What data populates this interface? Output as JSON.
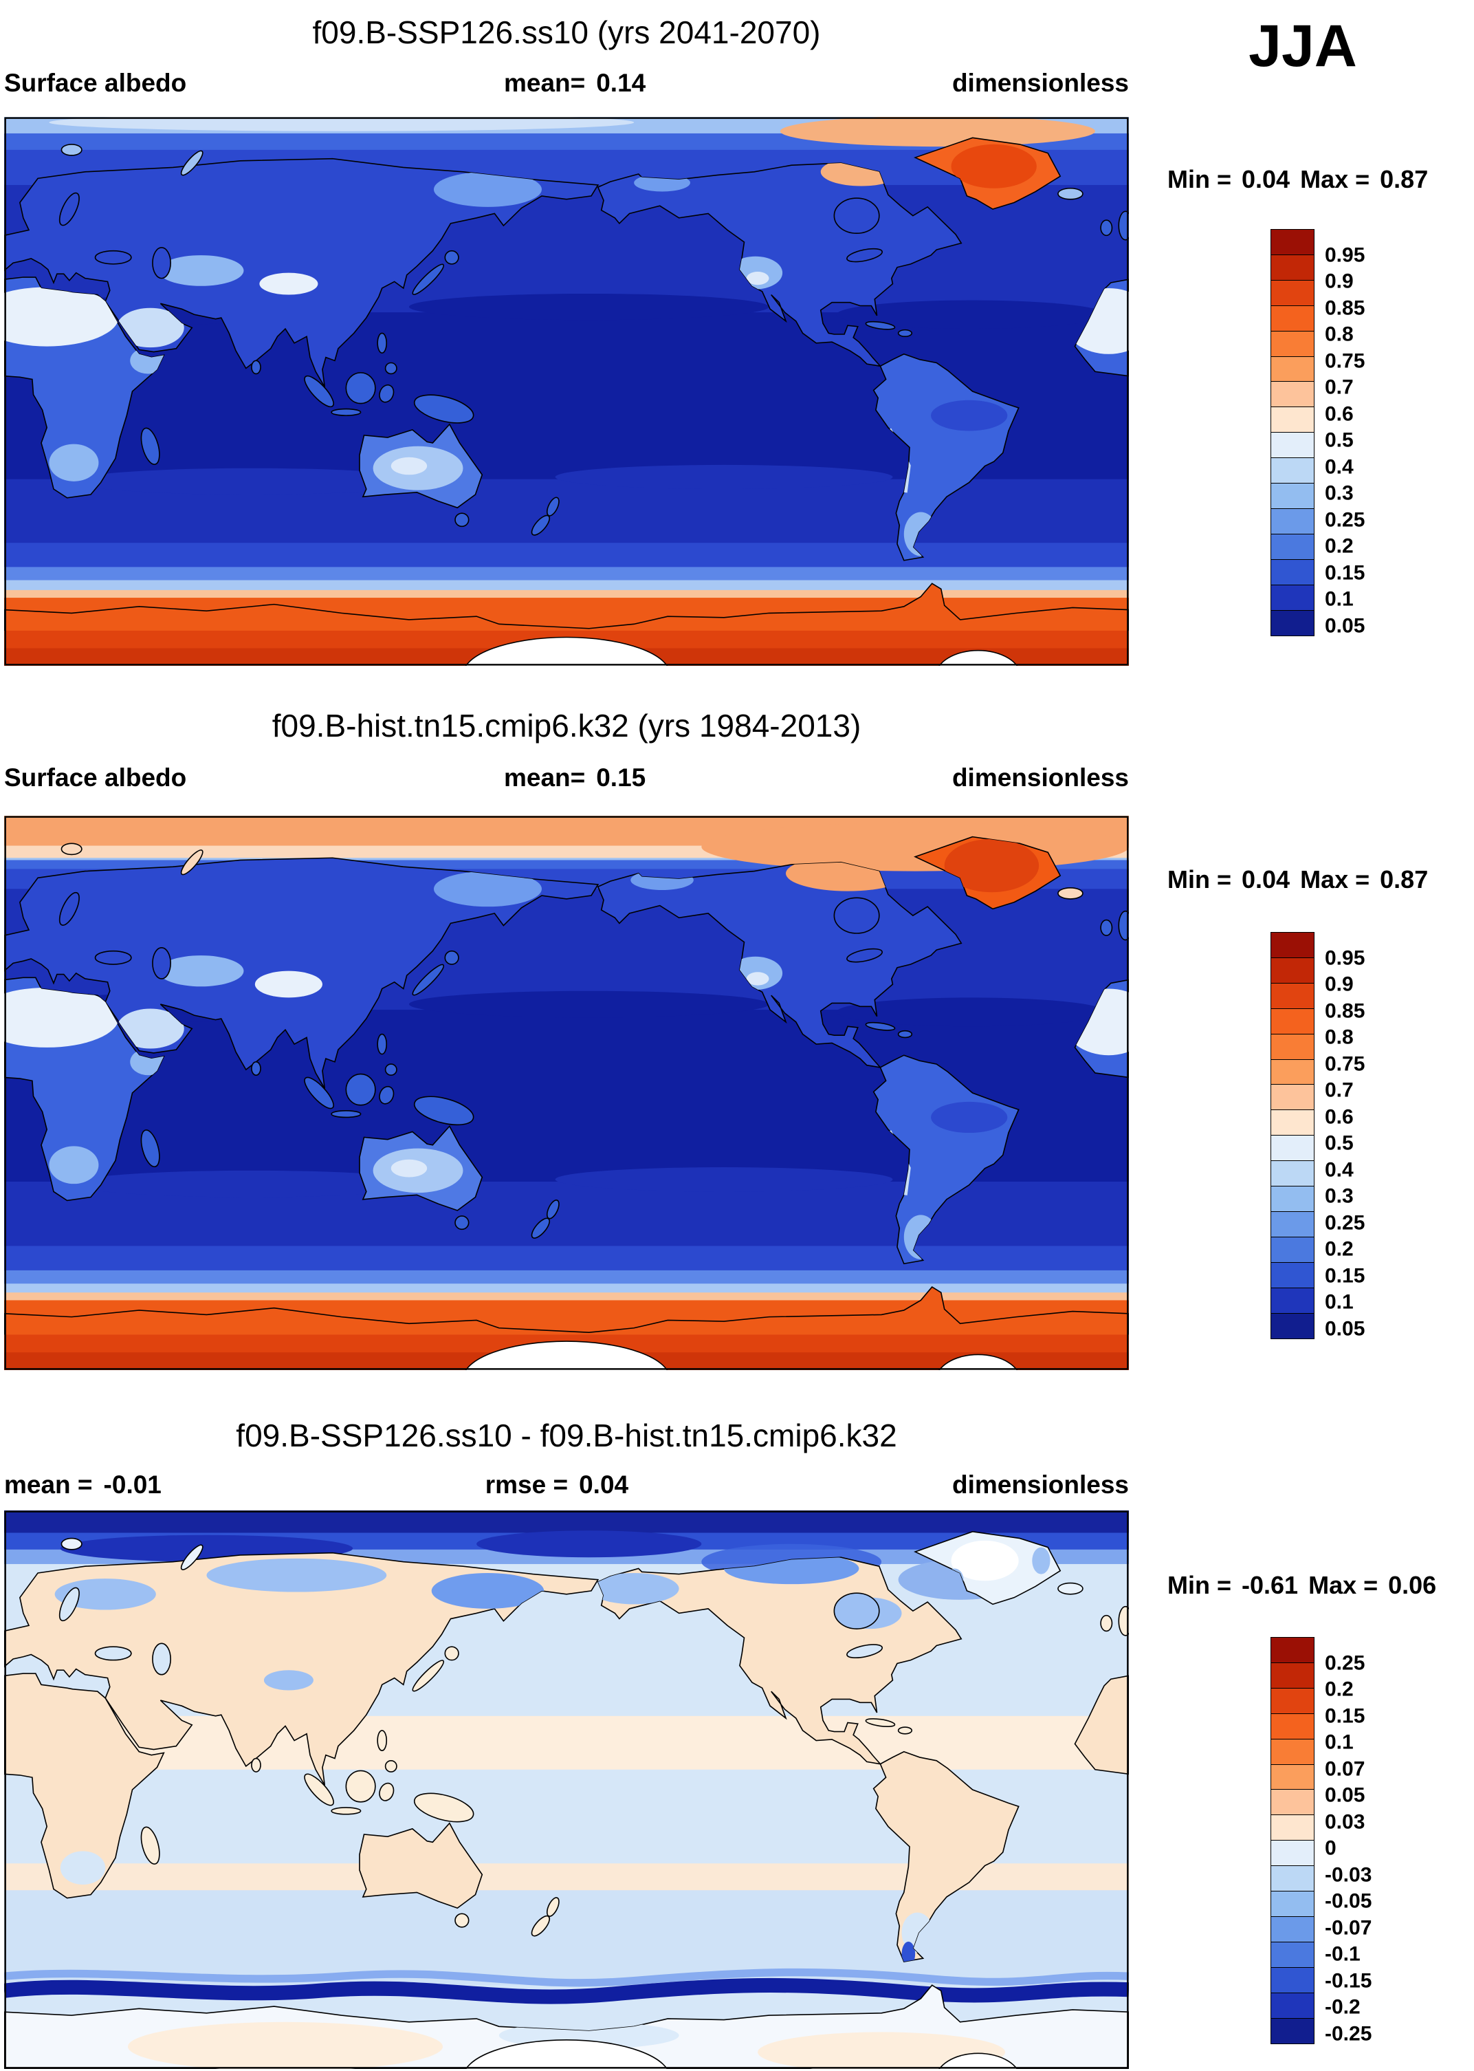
{
  "season_label": "JJA",
  "panels": [
    {
      "title": "f09.B-SSP126.ss10 (yrs 2041-2070)",
      "left": {
        "label": "Surface albedo"
      },
      "center": {
        "label": "mean=",
        "value": "0.14"
      },
      "units": "dimensionless",
      "min_label": "Min =",
      "min_value": "0.04",
      "max_label": "Max =",
      "max_value": "0.87",
      "colorbar": {
        "labels": [
          "0.95",
          "0.9",
          "0.85",
          "0.8",
          "0.75",
          "0.7",
          "0.6",
          "0.5",
          "0.4",
          "0.3",
          "0.25",
          "0.2",
          "0.15",
          "0.1",
          "0.05"
        ],
        "colors": [
          "#9b1005",
          "#c22706",
          "#e14410",
          "#f4621e",
          "#f97d35",
          "#fb9e5c",
          "#fdc39b",
          "#fee6cf",
          "#e3eefa",
          "#bcd8f5",
          "#93bdf0",
          "#6b9ae9",
          "#4b79df",
          "#3056d2",
          "#1f36bb",
          "#111e8f"
        ]
      }
    },
    {
      "title": "f09.B-hist.tn15.cmip6.k32 (yrs 1984-2013)",
      "left": {
        "label": "Surface albedo"
      },
      "center": {
        "label": "mean=",
        "value": "0.15"
      },
      "units": "dimensionless",
      "min_label": "Min =",
      "min_value": "0.04",
      "max_label": "Max =",
      "max_value": "0.87",
      "colorbar": {
        "labels": [
          "0.95",
          "0.9",
          "0.85",
          "0.8",
          "0.75",
          "0.7",
          "0.6",
          "0.5",
          "0.4",
          "0.3",
          "0.25",
          "0.2",
          "0.15",
          "0.1",
          "0.05"
        ],
        "colors": [
          "#9b1005",
          "#c22706",
          "#e14410",
          "#f4621e",
          "#f97d35",
          "#fb9e5c",
          "#fdc39b",
          "#fee6cf",
          "#e3eefa",
          "#bcd8f5",
          "#93bdf0",
          "#6b9ae9",
          "#4b79df",
          "#3056d2",
          "#1f36bb",
          "#111e8f"
        ]
      }
    },
    {
      "title": "f09.B-SSP126.ss10 - f09.B-hist.tn15.cmip6.k32",
      "left": {
        "label": "mean =",
        "value": "-0.01"
      },
      "center": {
        "label": "rmse =",
        "value": "0.04"
      },
      "units": "dimensionless",
      "min_label": "Min =",
      "min_value": "-0.61",
      "max_label": "Max =",
      "max_value": "0.06",
      "colorbar": {
        "labels": [
          "0.25",
          "0.2",
          "0.15",
          "0.1",
          "0.07",
          "0.05",
          "0.03",
          "0",
          "-0.03",
          "-0.05",
          "-0.07",
          "-0.1",
          "-0.15",
          "-0.2",
          "-0.25"
        ],
        "colors": [
          "#9b1005",
          "#c22706",
          "#e14410",
          "#f4621e",
          "#f97d35",
          "#fb9e5c",
          "#fdc39b",
          "#fee6cf",
          "#e3eefa",
          "#bcd8f5",
          "#93bdf0",
          "#6b9ae9",
          "#4b79df",
          "#3056d2",
          "#1f36bb",
          "#111e8f"
        ]
      }
    }
  ],
  "chart_data": [
    {
      "type": "heatmap",
      "title": "f09.B-SSP126.ss10 (yrs 2041-2070)",
      "variable": "Surface albedo",
      "units": "dimensionless",
      "season": "JJA",
      "projection": "global cylindrical lat-lon, Pacific-centered (0E left edge)",
      "mean": 0.14,
      "min": 0.04,
      "max": 0.87,
      "contour_levels": [
        0.05,
        0.1,
        0.15,
        0.2,
        0.25,
        0.3,
        0.4,
        0.5,
        0.6,
        0.7,
        0.75,
        0.8,
        0.85,
        0.9,
        0.95
      ],
      "legend_position": "right",
      "notes": "Oceans ~0.05-0.1 (dark blue), vegetated land ~0.1-0.2, deserts (Sahara, Arabia, central Asia, Australia, SW US) ~0.3-0.5 (pale), Greenland and Antarctica ~0.75-0.9 (orange), thin high-albedo sea-ice fringe at both poles"
    },
    {
      "type": "heatmap",
      "title": "f09.B-hist.tn15.cmip6.k32 (yrs 1984-2013)",
      "variable": "Surface albedo",
      "units": "dimensionless",
      "season": "JJA",
      "projection": "global cylindrical lat-lon, Pacific-centered (0E left edge)",
      "mean": 0.15,
      "min": 0.04,
      "max": 0.87,
      "contour_levels": [
        0.05,
        0.1,
        0.15,
        0.2,
        0.25,
        0.3,
        0.4,
        0.5,
        0.6,
        0.7,
        0.75,
        0.8,
        0.85,
        0.9,
        0.95
      ],
      "legend_position": "right",
      "notes": "Same pattern as SSP126 panel but with a high-albedo (~0.6-0.7, peach) Arctic sea-ice band across the top of the map and larger orange Greenland ice extent"
    },
    {
      "type": "heatmap",
      "title": "f09.B-SSP126.ss10 - f09.B-hist.tn15.cmip6.k32",
      "variable": "Surface albedo difference",
      "units": "dimensionless",
      "season": "JJA",
      "projection": "global cylindrical lat-lon, Pacific-centered (0E left edge)",
      "mean": -0.01,
      "rmse": 0.04,
      "min": -0.61,
      "max": 0.06,
      "contour_levels": [
        -0.25,
        -0.2,
        -0.15,
        -0.1,
        -0.07,
        -0.05,
        -0.03,
        0,
        0.03,
        0.05,
        0.07,
        0.1,
        0.15,
        0.2,
        0.25
      ],
      "legend_position": "right",
      "notes": "Near zero (pale blue -0.03..0 and pale peach 0..0.03) almost everywhere; strong negative (< -0.25, dark navy) over the Arctic Ocean and along the Southern Ocean sea-ice edge, reflecting sea-ice loss in the future scenario"
    }
  ]
}
